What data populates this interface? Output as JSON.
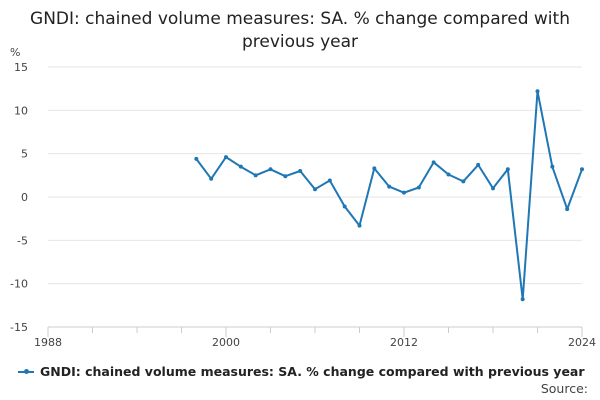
{
  "colors": {
    "series": "#1f77b4",
    "grid": "#e6e6e6",
    "axis": "#cccccc",
    "text": "#444444"
  },
  "source_label": "Source:",
  "chart_data": {
    "type": "line",
    "title": "GNDI: chained volume measures: SA. % change compared with previous year",
    "ylabel": "%",
    "xlabel": "",
    "xlim": [
      1988,
      2024
    ],
    "ylim": [
      -15,
      15
    ],
    "x_ticks": [
      1988,
      2000,
      2012,
      2024
    ],
    "y_ticks": [
      15,
      10,
      5,
      0,
      -5,
      -10,
      -15
    ],
    "legend_position": "bottom-left",
    "series": [
      {
        "name": "GNDI: chained volume measures: SA. % change compared with previous year",
        "x": [
          1998,
          1999,
          2000,
          2001,
          2002,
          2003,
          2004,
          2005,
          2006,
          2007,
          2008,
          2009,
          2010,
          2011,
          2012,
          2013,
          2014,
          2015,
          2016,
          2017,
          2018,
          2019,
          2020,
          2021,
          2022,
          2023,
          2024
        ],
        "values": [
          4.4,
          2.1,
          4.6,
          3.5,
          2.5,
          3.2,
          2.4,
          3.0,
          0.9,
          1.9,
          -1.1,
          -3.3,
          3.3,
          1.2,
          0.5,
          1.1,
          4.0,
          2.6,
          1.8,
          3.7,
          1.0,
          3.2,
          -11.8,
          12.2,
          3.5,
          -1.4,
          3.2
        ]
      }
    ]
  }
}
